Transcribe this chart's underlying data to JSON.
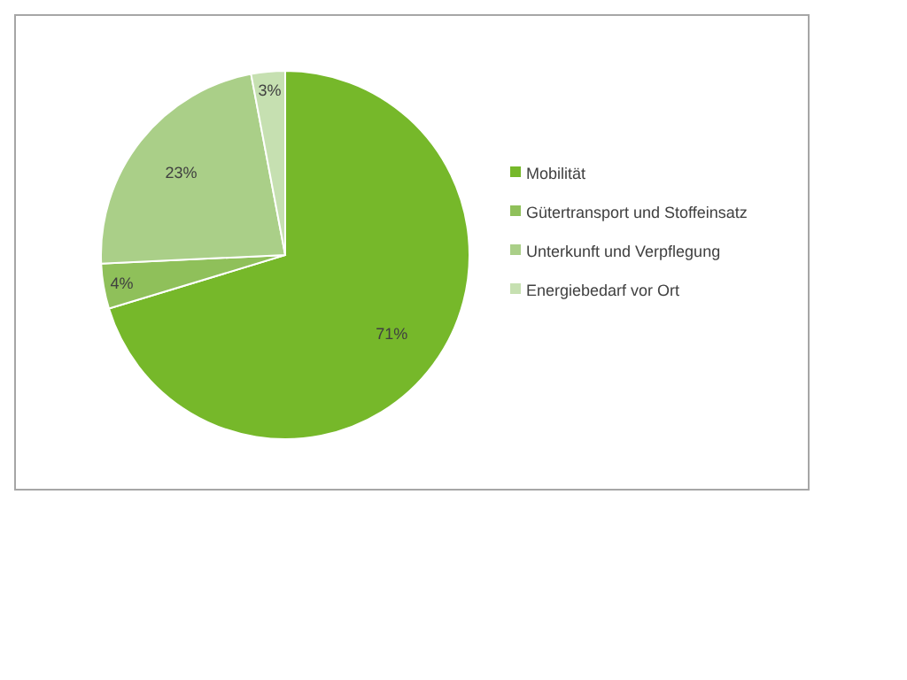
{
  "chart_data": {
    "type": "pie",
    "categories": [
      "Mobilität",
      "Gütertransport und Stoffeinsatz",
      "Unterkunft und Verpflegung",
      "Energiebedarf vor Ort"
    ],
    "values": [
      71,
      4,
      23,
      3
    ],
    "colors": [
      "#76b82a",
      "#8fc05a",
      "#aacf88",
      "#c6e0b1"
    ],
    "value_labels": [
      "71%",
      "4%",
      "23%",
      "3%"
    ],
    "legend": "right"
  }
}
